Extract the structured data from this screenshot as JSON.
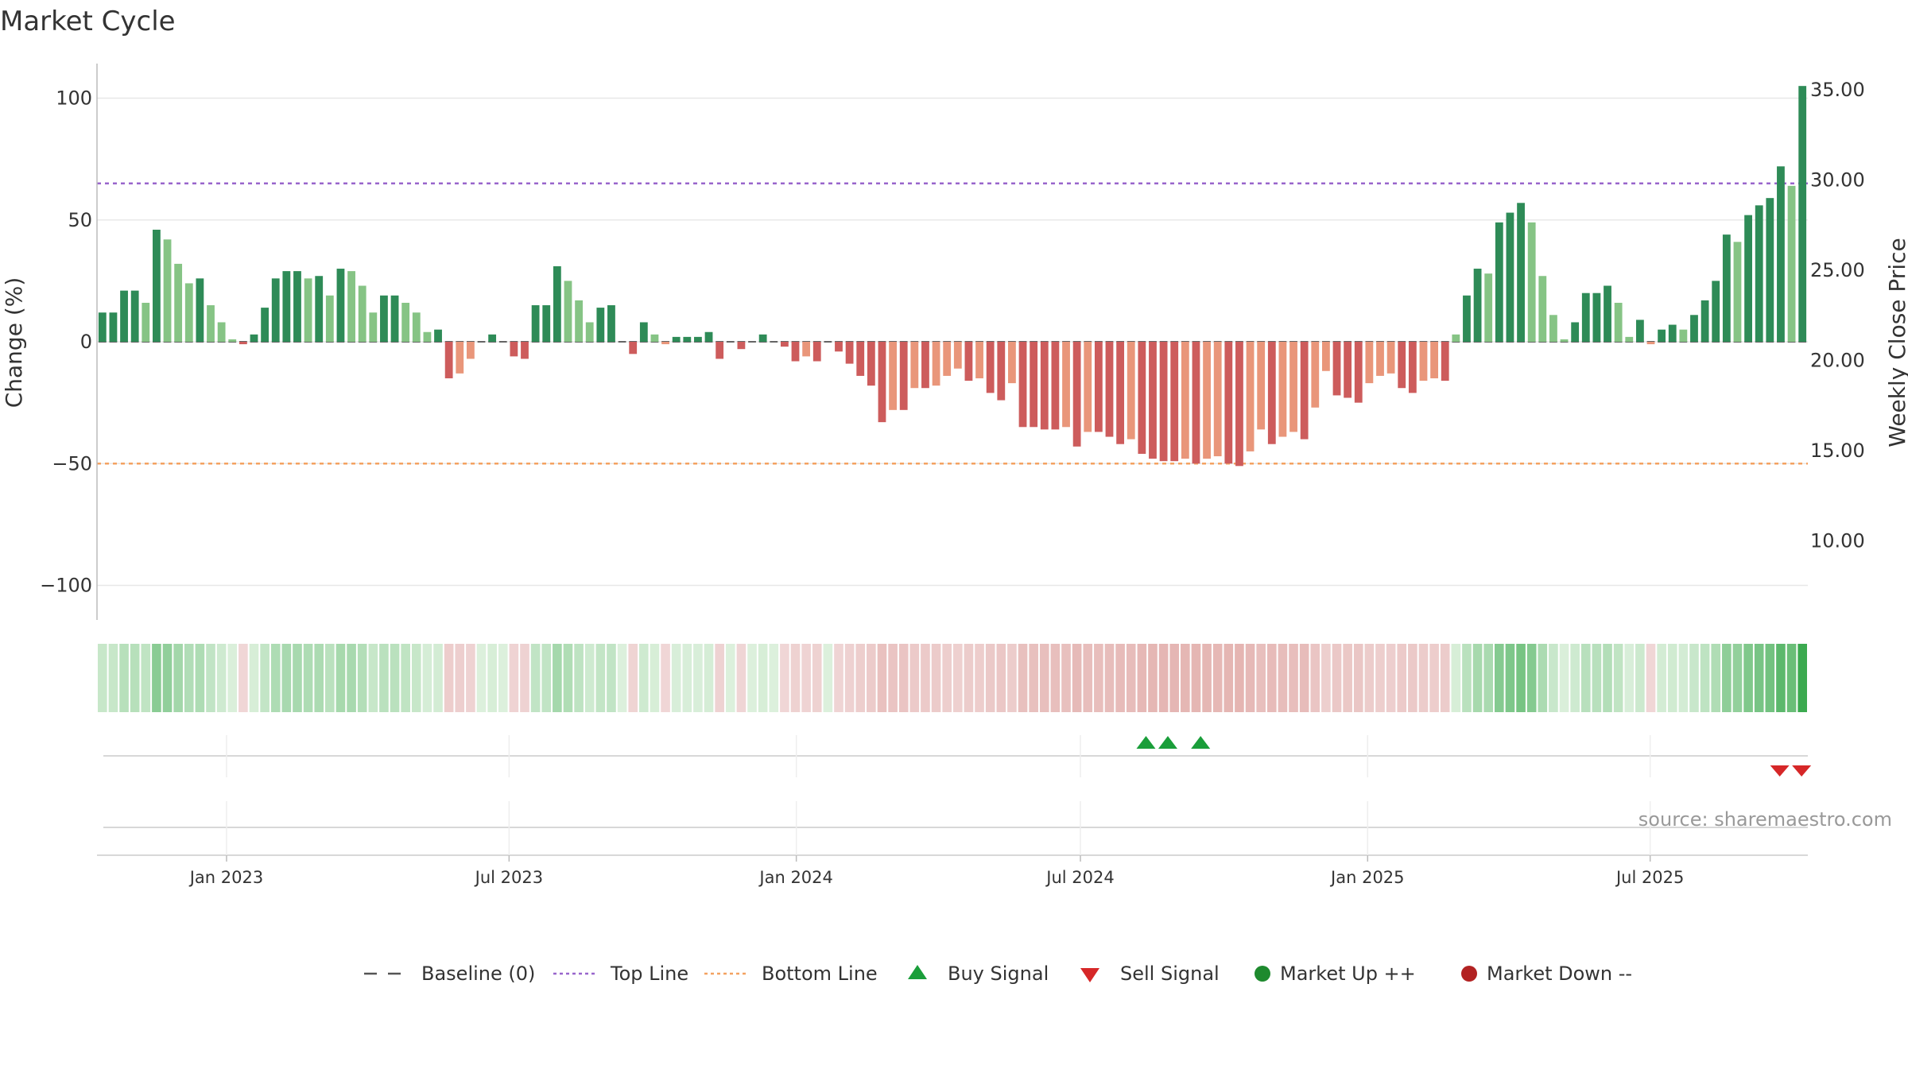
{
  "chart_data": {
    "type": "bar",
    "title": "Market Cycle",
    "ylabel_left": "Change (%)",
    "ylabel_right": "Weekly Close Price",
    "ylim_left": [
      -115,
      115
    ],
    "yticks_left": [
      100,
      50,
      0,
      -50,
      -100
    ],
    "ytick_labels_left": [
      "100",
      "50",
      "0",
      "−50",
      "−100"
    ],
    "ylim_right": [
      7.2,
      37.7
    ],
    "yticks_right": [
      35,
      30,
      25,
      20,
      15,
      10
    ],
    "ytick_labels_right": [
      "35.00",
      "30.00",
      "25.00",
      "20.00",
      "15.00",
      "10.00"
    ],
    "x_start": "2022-10-10",
    "x_end": "2025-10-10",
    "x_interval": "weekly",
    "xticks": [
      {
        "date": "2023-01-01",
        "label": "Jan 2023"
      },
      {
        "date": "2023-07-01",
        "label": "Jul 2023"
      },
      {
        "date": "2024-01-01",
        "label": "Jan 2024"
      },
      {
        "date": "2024-07-01",
        "label": "Jul 2024"
      },
      {
        "date": "2025-01-01",
        "label": "Jan 2025"
      },
      {
        "date": "2025-07-01",
        "label": "Jul 2025"
      }
    ],
    "baseline": 0,
    "top_line": 65,
    "bottom_line": -50,
    "values": [
      12,
      12,
      21,
      21,
      16,
      46,
      42,
      32,
      24,
      26,
      15,
      8,
      1,
      -1,
      3,
      14,
      26,
      29,
      29,
      26,
      27,
      19,
      30,
      29,
      23,
      12,
      19,
      19,
      16,
      12,
      4,
      5,
      -15,
      -13,
      -7,
      0,
      3,
      0,
      -6,
      -7,
      15,
      15,
      31,
      25,
      17,
      8,
      14,
      15,
      0,
      -5,
      8,
      3,
      -1,
      2,
      2,
      2,
      4,
      -7,
      0,
      -3,
      0,
      3,
      0,
      -2,
      -8,
      -6,
      -8,
      0,
      -4,
      -9,
      -14,
      -18,
      -33,
      -28,
      -28,
      -19,
      -19,
      -18,
      -14,
      -11,
      -16,
      -15,
      -21,
      -24,
      -17,
      -35,
      -35,
      -36,
      -36,
      -35,
      -43,
      -37,
      -37,
      -39,
      -42,
      -40,
      -46,
      -48,
      -49,
      -49,
      -48,
      -50,
      -48,
      -47,
      -50,
      -51,
      -45,
      -36,
      -42,
      -39,
      -37,
      -40,
      -27,
      -12,
      -22,
      -23,
      -25,
      -17,
      -14,
      -13,
      -19,
      -21,
      -16,
      -15,
      -16,
      3,
      19,
      30,
      28,
      49,
      53,
      57,
      49,
      27,
      11,
      1,
      8,
      20,
      20,
      23,
      16,
      2,
      9,
      -1,
      5,
      7,
      5,
      11,
      17,
      25,
      44,
      41,
      52,
      56,
      59,
      72,
      64,
      105
    ],
    "series": [
      {
        "name": "Baseline (0)",
        "color": "#555555"
      },
      {
        "name": "Top Line",
        "color": "#9966cc"
      },
      {
        "name": "Bottom Line",
        "color": "#f4a261"
      },
      {
        "name": "Buy Signal",
        "color": "#1a9e3a",
        "dates": [
          "2024-08-12",
          "2024-08-26",
          "2024-09-16"
        ]
      },
      {
        "name": "Sell Signal",
        "color": "#d62728",
        "dates": [
          "2025-09-22",
          "2025-10-06"
        ]
      },
      {
        "name": "Market Up ++",
        "color": "#1e8a2e"
      },
      {
        "name": "Market Down --",
        "color": "#b22222"
      }
    ],
    "legend_position": "bottom",
    "source": "source: sharemaestro.com",
    "colors": {
      "positive_dark": "#2e8b57",
      "positive_light": "#86c485",
      "negative_dark": "#cd5c5c",
      "negative_light": "#e9967a"
    }
  }
}
